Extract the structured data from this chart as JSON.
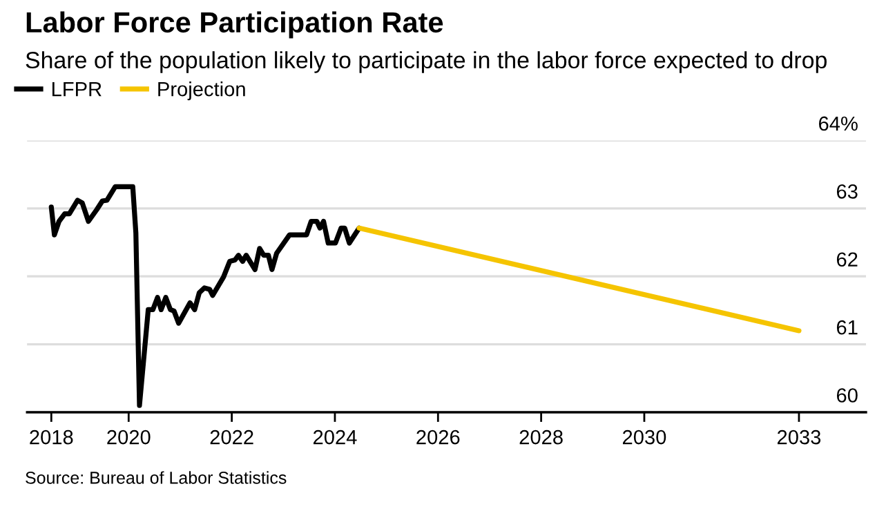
{
  "chart_data": {
    "type": "line",
    "title": "Labor Force Participation Rate",
    "subtitle": "Share of the population likely to participate in the labor force expected to drop",
    "annotations": [
      "Source: Bureau of Labor Statistics"
    ],
    "series": [
      {
        "name": "LFPR",
        "color": "#000000",
        "x": [
          2018.5,
          2018.56,
          2018.65,
          2018.76,
          2018.85,
          2019.01,
          2019.1,
          2019.22,
          2019.38,
          2019.49,
          2019.58,
          2019.74,
          2020.08,
          2020.14,
          2020.21,
          2020.38,
          2020.47,
          2020.56,
          2020.63,
          2020.72,
          2020.81,
          2020.88,
          2020.97,
          2021.19,
          2021.28,
          2021.37,
          2021.47,
          2021.57,
          2021.63,
          2021.84,
          2021.96,
          2022.06,
          2022.13,
          2022.21,
          2022.28,
          2022.45,
          2022.54,
          2022.62,
          2022.71,
          2022.78,
          2022.87,
          2023.12,
          2023.45,
          2023.54,
          2023.65,
          2023.71,
          2023.78,
          2023.87,
          2024.01,
          2024.12,
          2024.19,
          2024.28,
          2024.47
        ],
        "values": [
          63.02,
          62.61,
          62.81,
          62.92,
          62.92,
          63.12,
          63.08,
          62.81,
          62.98,
          63.11,
          63.12,
          63.32,
          63.32,
          62.64,
          60.1,
          61.51,
          61.51,
          61.69,
          61.51,
          61.69,
          61.51,
          61.49,
          61.31,
          61.61,
          61.51,
          61.76,
          61.83,
          61.81,
          61.72,
          61.99,
          62.22,
          62.24,
          62.31,
          62.22,
          62.31,
          62.1,
          62.41,
          62.31,
          62.31,
          62.1,
          62.34,
          62.61,
          62.61,
          62.81,
          62.81,
          62.71,
          62.81,
          62.49,
          62.49,
          62.71,
          62.71,
          62.49,
          62.71
        ]
      },
      {
        "name": "Projection",
        "color": "#f5c400",
        "x": [
          2024.47,
          2033
        ],
        "values": [
          62.71,
          61.2
        ]
      }
    ],
    "xlim": [
      2018.03,
      2034.3
    ],
    "xticks": [
      {
        "value": 2018.5,
        "label": "2018"
      },
      2020,
      2022,
      2024,
      2026,
      2028,
      2030,
      2033
    ],
    "ylim": [
      60,
      64
    ],
    "yticks": [
      {
        "value": 64,
        "label": "64%"
      },
      63,
      62,
      61,
      60
    ],
    "grid": "y",
    "legend": "top left",
    "marker": "none",
    "line_style": "solid"
  }
}
